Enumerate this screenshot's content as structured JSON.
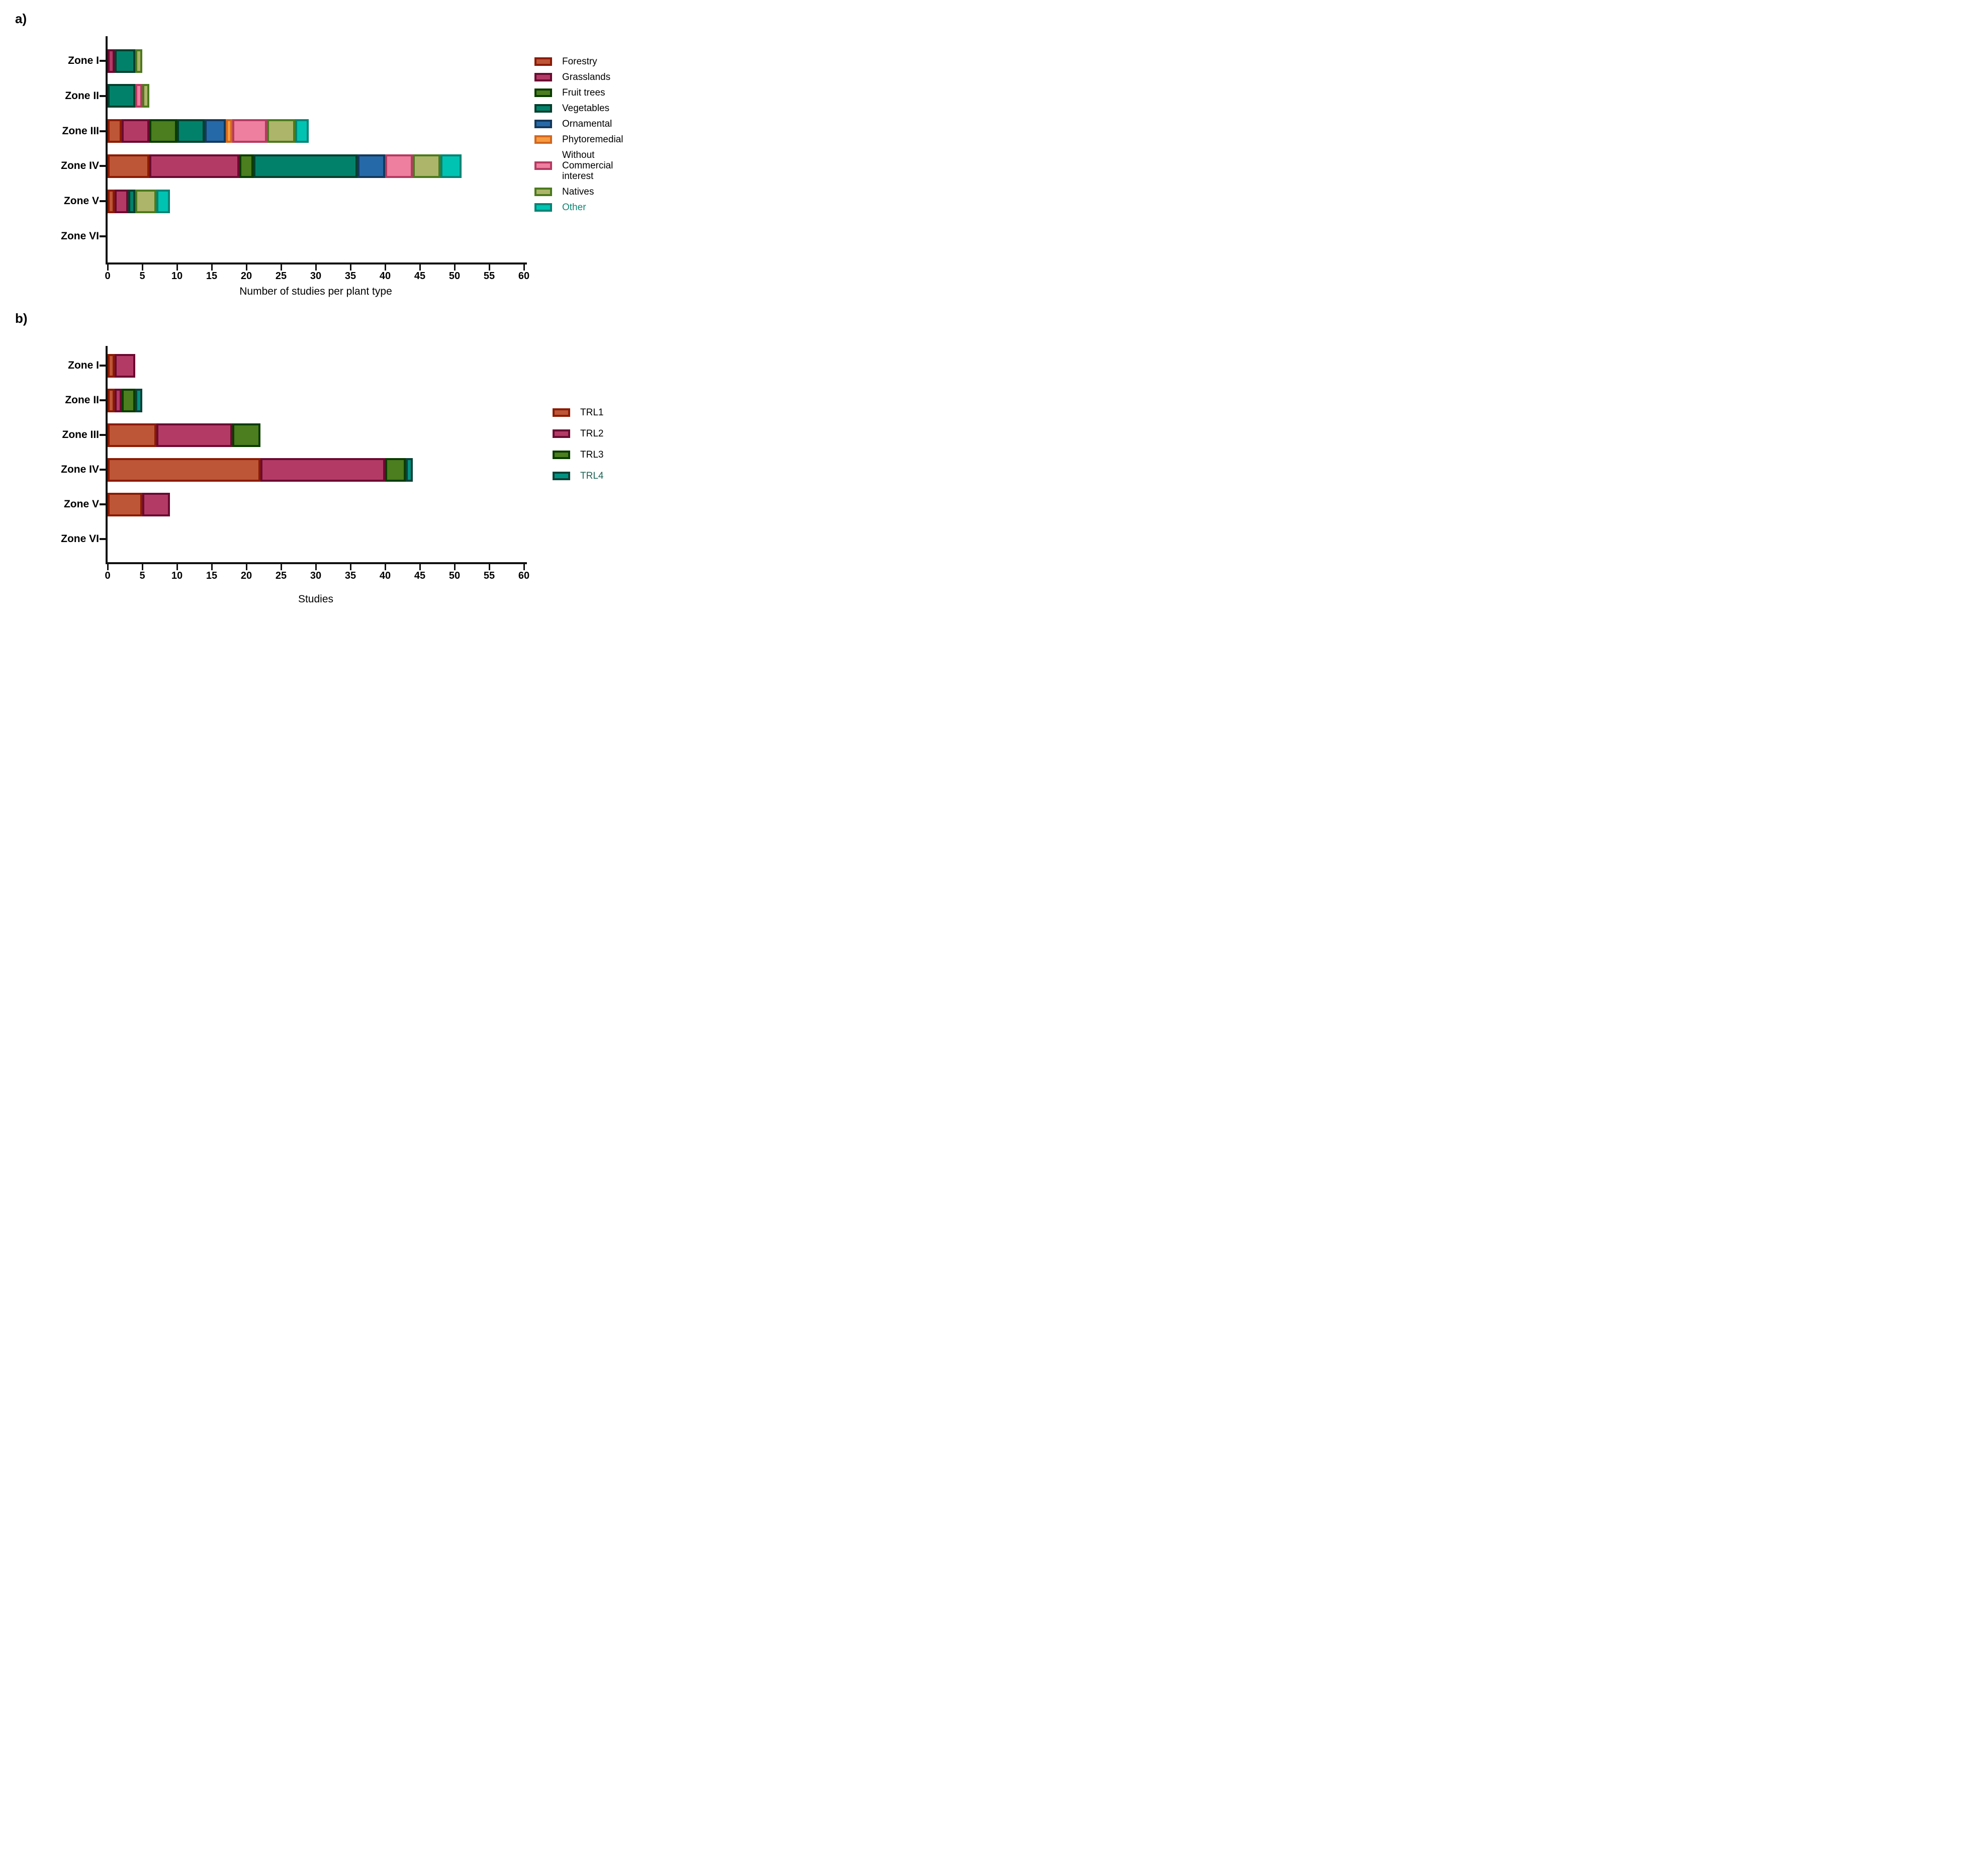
{
  "page": {
    "background": "#ffffff"
  },
  "panels": [
    {
      "label": "a)"
    },
    {
      "label": "b)"
    }
  ],
  "chart_data": [
    {
      "type": "bar",
      "orientation": "horizontal",
      "stacked": true,
      "title": "",
      "xlabel": "Number of studies per plant type",
      "ylabel": "",
      "xlim": [
        0,
        60
      ],
      "tick_values": [
        0,
        5,
        10,
        15,
        20,
        25,
        30,
        35,
        40,
        45,
        50,
        55,
        60
      ],
      "tick_labels": [
        "0",
        "5",
        "10",
        "15",
        "20",
        "25",
        "30",
        "35",
        "40",
        "45",
        "50",
        "55",
        "60"
      ],
      "grid": false,
      "legend_position": "right",
      "categories": [
        "Zone I",
        "Zone II",
        "Zone III",
        "Zone IV",
        "Zone V",
        "Zone VI"
      ],
      "category_totals": [
        5,
        6,
        29,
        51,
        9,
        0
      ],
      "series": [
        {
          "name": "Forestry",
          "legend_label": "Forestry",
          "values": [
            0,
            0,
            2,
            6,
            1,
            0
          ],
          "fill": "#bd5636",
          "border": "#8b1b03",
          "label_color": "#000000"
        },
        {
          "name": "Grasslands",
          "legend_label": "Grasslands",
          "values": [
            1,
            0,
            4,
            13,
            2,
            0
          ],
          "fill": "#b43a66",
          "border": "#6b0a31",
          "label_color": "#000000"
        },
        {
          "name": "Fruit trees",
          "legend_label": "Fruit trees",
          "values": [
            0,
            0,
            4,
            2,
            0,
            0
          ],
          "fill": "#4c7d1e",
          "border": "#0a3c00",
          "label_color": "#000000"
        },
        {
          "name": "Vegetables",
          "legend_label": "Vegetables",
          "values": [
            3,
            4,
            4,
            15,
            1,
            0
          ],
          "fill": "#02816a",
          "border": "#043f2d",
          "label_color": "#000000"
        },
        {
          "name": "Ornamental",
          "legend_label": "Ornamental",
          "values": [
            0,
            0,
            3,
            4,
            0,
            0
          ],
          "fill": "#2669a8",
          "border": "#14395c",
          "label_color": "#000000"
        },
        {
          "name": "Phytoremedial",
          "legend_label": "Phytoremedial",
          "values": [
            0,
            0,
            1,
            0,
            0,
            0
          ],
          "fill": "#f89b40",
          "border": "#d2671e",
          "label_color": "#000000"
        },
        {
          "name": "Without Commercial interest",
          "legend_label": "Without\nCommercial\ninterest",
          "values": [
            0,
            1,
            5,
            4,
            0,
            0
          ],
          "fill": "#ee7f9f",
          "border": "#b63a62",
          "label_color": "#000000"
        },
        {
          "name": "Natives",
          "legend_label": "Natives",
          "values": [
            1,
            1,
            4,
            4,
            3,
            0
          ],
          "fill": "#adb56b",
          "border": "#4c7a1d",
          "label_color": "#000000"
        },
        {
          "name": "Other",
          "legend_label": "Other",
          "values": [
            0,
            0,
            2,
            3,
            2,
            0
          ],
          "fill": "#01c3b2",
          "border": "#028475",
          "label_color": "#0e8673"
        }
      ]
    },
    {
      "type": "bar",
      "orientation": "horizontal",
      "stacked": true,
      "title": "",
      "xlabel": "Studies",
      "ylabel": "",
      "xlim": [
        0,
        60
      ],
      "tick_values": [
        0,
        5,
        10,
        15,
        20,
        25,
        30,
        35,
        40,
        45,
        50,
        55,
        60
      ],
      "tick_labels": [
        "0",
        "5",
        "10",
        "15",
        "20",
        "25",
        "30",
        "35",
        "40",
        "45",
        "50",
        "55",
        "60"
      ],
      "grid": false,
      "legend_position": "right",
      "categories": [
        "Zone I",
        "Zone II",
        "Zone III",
        "Zone IV",
        "Zone V",
        "Zone VI"
      ],
      "category_totals": [
        4,
        5,
        22,
        44,
        9,
        0
      ],
      "series": [
        {
          "name": "TRL1",
          "legend_label": "TRL1",
          "values": [
            1,
            1,
            7,
            22,
            5,
            0
          ],
          "fill": "#bd5636",
          "border": "#8b1b03",
          "label_color": "#000000"
        },
        {
          "name": "TRL2",
          "legend_label": "TRL2",
          "values": [
            3,
            1,
            11,
            18,
            4,
            0
          ],
          "fill": "#b43a66",
          "border": "#6b0a31",
          "label_color": "#000000"
        },
        {
          "name": "TRL3",
          "legend_label": "TRL3",
          "values": [
            0,
            2,
            4,
            3,
            0,
            0
          ],
          "fill": "#4c7d1e",
          "border": "#0a3c00",
          "label_color": "#000000"
        },
        {
          "name": "TRL4",
          "legend_label": "TRL4",
          "values": [
            0,
            1,
            0,
            1,
            0,
            0
          ],
          "fill": "#019181",
          "border": "#0c4237",
          "label_color": "#1d6354"
        }
      ]
    }
  ]
}
